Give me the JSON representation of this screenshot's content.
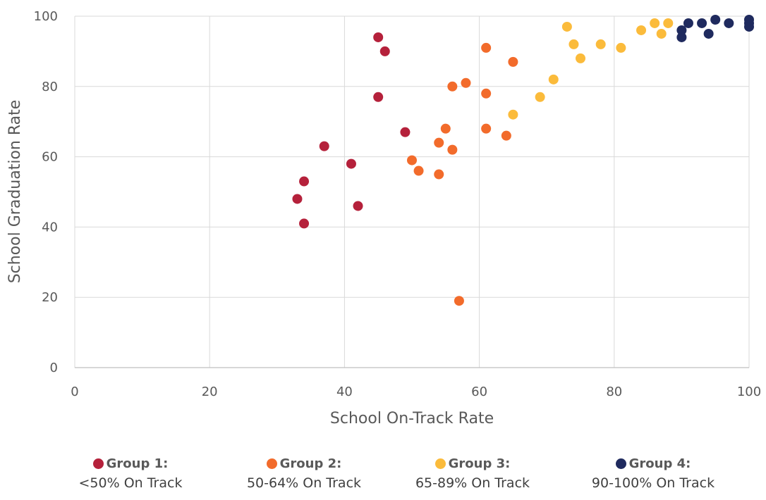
{
  "chart_data": {
    "type": "scatter",
    "xlabel": "School On-Track Rate",
    "ylabel": "School Graduation Rate",
    "xlim": [
      0,
      100
    ],
    "ylim": [
      0,
      100
    ],
    "x_ticks": [
      "0",
      "20",
      "40",
      "60",
      "80",
      "100"
    ],
    "y_ticks": [
      "0",
      "20",
      "40",
      "60",
      "80",
      "100"
    ],
    "grid": true,
    "legend_position": "bottom",
    "series": [
      {
        "name": "Group 1:",
        "subtitle": "<50% On Track",
        "color": "#B5213B",
        "points": [
          [
            33,
            48
          ],
          [
            34,
            53
          ],
          [
            34,
            41
          ],
          [
            37,
            63
          ],
          [
            41,
            58
          ],
          [
            42,
            46
          ],
          [
            45,
            94
          ],
          [
            45,
            77
          ],
          [
            46,
            90
          ],
          [
            49,
            67
          ]
        ]
      },
      {
        "name": "Group 2:",
        "subtitle": "50-64% On Track",
        "color": "#F26B2B",
        "points": [
          [
            50,
            59
          ],
          [
            51,
            56
          ],
          [
            54,
            64
          ],
          [
            54,
            55
          ],
          [
            55,
            68
          ],
          [
            56,
            80
          ],
          [
            56,
            62
          ],
          [
            57,
            19
          ],
          [
            58,
            81
          ],
          [
            61,
            91
          ],
          [
            61,
            78
          ],
          [
            61,
            68
          ],
          [
            64,
            66
          ],
          [
            65,
            87
          ]
        ]
      },
      {
        "name": "Group 3:",
        "subtitle": "65-89% On Track",
        "color": "#FBBB3B",
        "points": [
          [
            65,
            72
          ],
          [
            69,
            77
          ],
          [
            71,
            82
          ],
          [
            73,
            97
          ],
          [
            74,
            92
          ],
          [
            75,
            88
          ],
          [
            78,
            92
          ],
          [
            81,
            91
          ],
          [
            84,
            96
          ],
          [
            86,
            98
          ],
          [
            87,
            95
          ],
          [
            88,
            98
          ]
        ]
      },
      {
        "name": "Group 4:",
        "subtitle": "90-100% On Track",
        "color": "#1F2A5E",
        "points": [
          [
            90,
            96
          ],
          [
            90,
            94
          ],
          [
            91,
            98
          ],
          [
            93,
            98
          ],
          [
            94,
            95
          ],
          [
            95,
            99
          ],
          [
            97,
            98
          ],
          [
            100,
            99
          ],
          [
            100,
            98
          ],
          [
            100,
            97
          ]
        ]
      }
    ]
  }
}
